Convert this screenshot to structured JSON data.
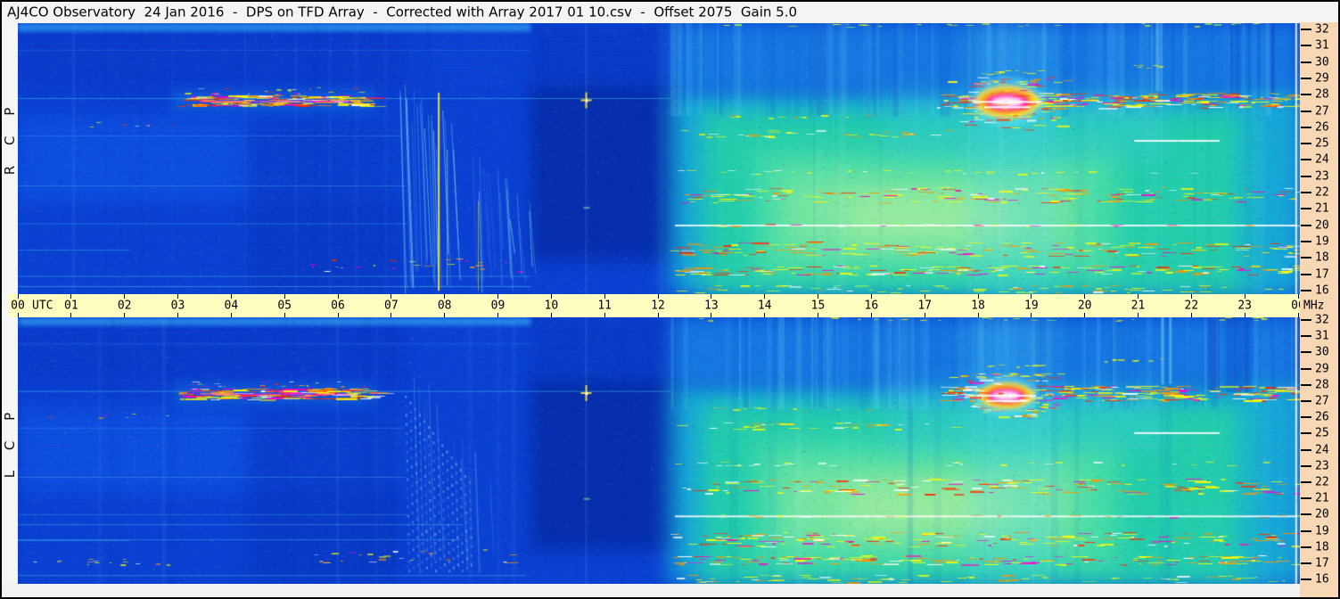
{
  "window": {
    "title": "AJ4CO Observatory  24 Jan 2016  -  DPS on TFD Array  -  Corrected with Array 2017 01 10.csv  -  Offset 2075  Gain 5.0"
  },
  "colors": {
    "title_bar_bg": "#f4f4f4",
    "time_axis_bg": "#ffffc2",
    "freq_axis_bg": "#f8d8b4",
    "margin_bg": "#f2f2f2",
    "border": "#000000",
    "axis_text": "#000000"
  },
  "chart_data": {
    "type": "heatmap",
    "title": "AJ4CO Observatory  24 Jan 2016  -  DPS on TFD Array  -  Corrected with Array 2017 01 10.csv  -  Offset 2075  Gain 5.0",
    "observatory": "AJ4CO Observatory",
    "date": "24 Jan 2016",
    "instrument": "DPS on TFD Array",
    "correction_file": "Array 2017 01 10.csv",
    "offset": 2075,
    "gain": 5.0,
    "x_axis": {
      "prefix_label": "UTC",
      "suffix_label": "MHz",
      "unit": "hours UTC",
      "range": [
        0,
        24
      ],
      "ticks": [
        "00",
        "01",
        "02",
        "03",
        "04",
        "05",
        "06",
        "07",
        "08",
        "09",
        "10",
        "11",
        "12",
        "13",
        "14",
        "15",
        "16",
        "17",
        "18",
        "19",
        "20",
        "21",
        "22",
        "23",
        "00"
      ]
    },
    "y_axis": {
      "unit": "MHz",
      "range": [
        16,
        32
      ],
      "ticks": [
        "32",
        "31",
        "30",
        "29",
        "28",
        "27",
        "26",
        "25",
        "24",
        "23",
        "22",
        "21",
        "20",
        "19",
        "18",
        "17",
        "16"
      ]
    },
    "panels": [
      {
        "id": "RCP",
        "label": "R C P",
        "polarization": "Right Circular Polarization"
      },
      {
        "id": "LCP",
        "label": "L C P",
        "polarization": "Left Circular Polarization"
      }
    ],
    "palette": {
      "streak_colors": [
        "#ffff00",
        "#ff9500",
        "#ff2a00",
        "#ff00c8",
        "#ffffff"
      ],
      "blob_layers": [
        [
          "#66e8ff",
          0.4,
          1.0,
          1.0
        ],
        [
          "#ffe14a",
          0.85,
          0.85,
          0.66
        ],
        [
          "#ff9a00",
          0.9,
          0.7,
          0.48
        ],
        [
          "#ff22cc",
          0.95,
          0.55,
          0.34
        ],
        [
          "#ffffff",
          0.95,
          0.4,
          0.2
        ]
      ]
    },
    "features": [
      {
        "type": "bg",
        "p": "B",
        "t": [
          0,
          24
        ],
        "f": [
          16,
          32
        ],
        "c": "#0a41d2",
        "a": 1,
        "blur": 0,
        "desc": "night-side blue background"
      },
      {
        "type": "bg",
        "p": "B",
        "t": [
          0,
          7.3
        ],
        "f": [
          28,
          32
        ],
        "c": "#0a38c8",
        "a": 0.8,
        "blur": 8
      },
      {
        "type": "bg",
        "p": "B",
        "t": [
          0,
          7.2
        ],
        "f": [
          21.5,
          26.5
        ],
        "c": "#1157e8",
        "a": 0.6,
        "blur": 10
      },
      {
        "type": "bg",
        "p": "B",
        "t": [
          4.3,
          7.15
        ],
        "f": [
          16,
          26.5
        ],
        "c": "#0736c0",
        "a": 0.6,
        "blur": 10
      },
      {
        "type": "bg",
        "p": "B",
        "t": [
          2.9,
          6.7
        ],
        "f": [
          26.8,
          28.1
        ],
        "c": "#1787e8",
        "a": 0.35,
        "blur": 6
      },
      {
        "type": "bg",
        "p": "B",
        "t": [
          9.6,
          12.4
        ],
        "f": [
          18,
          28.5
        ],
        "c": "#04259a",
        "a": 0.65,
        "blur": 9,
        "desc": "dark pre-noon region"
      },
      {
        "type": "bg",
        "p": "B",
        "t": [
          9.6,
          12.3
        ],
        "f": [
          28.5,
          32
        ],
        "c": "#0734bc",
        "a": 0.5,
        "blur": 9
      },
      {
        "type": "bg",
        "p": "B",
        "t": [
          12.2,
          24
        ],
        "f": [
          16,
          28
        ],
        "c": "#17b8d8",
        "a": 0.85,
        "blur": 12,
        "desc": "daytime ionospheric background"
      },
      {
        "type": "bg",
        "p": "B",
        "t": [
          12.8,
          23.2
        ],
        "f": [
          16,
          26.8
        ],
        "c": "#26d3a4",
        "a": 0.85,
        "blur": 12
      },
      {
        "type": "bg",
        "p": "B",
        "t": [
          13.8,
          20.6
        ],
        "f": [
          17,
          24.5
        ],
        "c": "#55e3a6",
        "a": 0.7,
        "blur": 14
      },
      {
        "type": "bg",
        "p": "B",
        "t": [
          14.3,
          19.8
        ],
        "f": [
          18.5,
          23
        ],
        "c": "#a8f09b",
        "a": 0.5,
        "blur": 16
      },
      {
        "type": "bg",
        "p": "B",
        "t": [
          15.5,
          18.6
        ],
        "f": [
          19,
          22
        ],
        "c": "#c9f59a",
        "a": 0.4,
        "blur": 16
      },
      {
        "type": "bg",
        "p": "B",
        "t": [
          12.2,
          24
        ],
        "f": [
          28,
          32
        ],
        "c": "#1b8fe8",
        "a": 0.7,
        "blur": 10
      },
      {
        "type": "bg",
        "p": "B",
        "t": [
          16.2,
          21.5
        ],
        "f": [
          24,
          28
        ],
        "c": "#3ecbe8",
        "a": 0.3,
        "blur": 12
      },
      {
        "type": "bg",
        "p": "B",
        "t": [
          17.8,
          19.45
        ],
        "f": [
          16,
          32
        ],
        "c": "#4fd7f2",
        "a": 0.25,
        "blur": 10,
        "desc": "bright evening column"
      },
      {
        "type": "bg",
        "p": "B",
        "t": [
          22.8,
          24
        ],
        "f": [
          16,
          28
        ],
        "c": "#18a8d8",
        "a": 0.55,
        "blur": 10
      },
      {
        "type": "bg",
        "p": "B",
        "t": [
          0,
          9.6
        ],
        "f": [
          31.5,
          32
        ],
        "c": "#2f9ff0",
        "a": 0.7,
        "blur": 2
      },
      {
        "type": "rows",
        "p": "B",
        "t": [
          0,
          12.2
        ],
        "f": [
          28,
          32
        ],
        "n": 14,
        "c": "#1a5ae0",
        "a": 0.25
      },
      {
        "type": "rows",
        "p": "B",
        "t": [
          0,
          7.2
        ],
        "f": [
          16,
          28
        ],
        "n": 20,
        "c": "#0a30b8",
        "a": 0.15
      },
      {
        "type": "rows",
        "p": "B",
        "t": [
          12.2,
          24
        ],
        "f": [
          16,
          28
        ],
        "n": 26,
        "c": "#ffffff",
        "a": 0.05
      },
      {
        "type": "vc",
        "p": "B",
        "t": [
          12.2,
          24
        ],
        "f": [
          26.5,
          32
        ],
        "n": 70,
        "light": "#7fe8ff",
        "dark": "#0c55c8",
        "amin": 0.05,
        "amax": 0.18,
        "wmax": 7,
        "lp": 0.55,
        "desc": "vertical striping, day side high band"
      },
      {
        "type": "vc",
        "p": "B",
        "t": [
          12.2,
          24
        ],
        "f": [
          16,
          32
        ],
        "n": 26,
        "light": "#bff4ff",
        "dark": "#0c55c8",
        "amin": 0.03,
        "amax": 0.08,
        "wmax": 9,
        "lp": 0.6
      },
      {
        "type": "vc",
        "p": "B",
        "t": [
          0,
          12.2
        ],
        "f": [
          16,
          32
        ],
        "n": 20,
        "light": "#6fb8f8",
        "dark": "#062a9e",
        "amin": 0.04,
        "amax": 0.1,
        "wmax": 6,
        "lp": 0.5
      },
      {
        "type": "vc",
        "p": "B",
        "t": [
          22.2,
          23.5
        ],
        "f": [
          27.5,
          32
        ],
        "n": 8,
        "light": "#7fe8ff",
        "dark": "#0b3cc0",
        "amin": 0.15,
        "amax": 0.3,
        "wmax": 10,
        "lp": 0.25
      },
      {
        "type": "vc",
        "p": "B",
        "t": [
          21.2,
          21.6
        ],
        "f": [
          28,
          32
        ],
        "n": 4,
        "light": "#8feaff",
        "dark": "#0c55c8",
        "amin": 0.2,
        "amax": 0.3,
        "wmax": 6,
        "lp": 0.8
      },
      {
        "type": "hl",
        "p": "B",
        "t": [
          0,
          12.2
        ],
        "f": 27.55,
        "c": "#49c4f2",
        "a": 0.5,
        "w": 1
      },
      {
        "type": "hl",
        "p": "B",
        "t": [
          0,
          7.2
        ],
        "f": 25.35,
        "c": "#3fb4ee",
        "a": 0.35,
        "w": 1
      },
      {
        "type": "hl",
        "p": "B",
        "t": [
          0,
          7.25
        ],
        "f": 22.4,
        "c": "#49c4f2",
        "a": 0.4,
        "w": 1
      },
      {
        "type": "hl",
        "p": "B",
        "t": [
          0,
          7.3
        ],
        "f": 20.15,
        "c": "#49c4f2",
        "a": 0.35,
        "w": 1
      },
      {
        "type": "hl",
        "p": "B",
        "t": [
          0,
          2.1
        ],
        "f": 18.6,
        "c": "#49c4f2",
        "a": 0.4,
        "w": 1
      },
      {
        "type": "hl",
        "p": "R",
        "t": [
          0,
          9.6
        ],
        "f": 17.05,
        "c": "#49c4f2",
        "a": 0.45,
        "w": 1
      },
      {
        "type": "hl",
        "p": "R",
        "t": [
          0,
          9.6
        ],
        "f": 16.45,
        "c": "#5fd4f6",
        "a": 0.45,
        "w": 1
      },
      {
        "type": "hl",
        "p": "B",
        "t": [
          0,
          9.6
        ],
        "f": 30.4,
        "c": "#2f9ff0",
        "a": 0.3,
        "w": 1
      },
      {
        "type": "hl",
        "p": "L",
        "t": [
          0,
          8.3
        ],
        "f": 19.55,
        "c": "#49c4f2",
        "a": 0.45,
        "w": 1
      },
      {
        "type": "hl",
        "p": "L",
        "t": [
          0,
          8.3
        ],
        "f": 18.65,
        "c": "#49c4f2",
        "a": 0.4,
        "w": 1
      },
      {
        "type": "hl",
        "p": "L",
        "t": [
          0,
          9.5
        ],
        "f": 16.5,
        "c": "#5fd4f6",
        "a": 0.4,
        "w": 1
      },
      {
        "type": "hs",
        "p": "B",
        "t": [
          3.0,
          6.65
        ],
        "f": [
          27.1,
          27.75
        ],
        "n": 170,
        "seg": [
          4,
          26
        ],
        "a": 0.95,
        "desc": "27 MHz interference band 03:00-06:40"
      },
      {
        "type": "hs",
        "p": "B",
        "t": [
          3.0,
          6.5
        ],
        "f": [
          27.8,
          28.2
        ],
        "n": 25,
        "seg": [
          2,
          8
        ],
        "a": 0.7
      },
      {
        "type": "hl",
        "p": "B",
        "t": [
          3.4,
          6.2
        ],
        "f": 27.38,
        "c": "#ff30d0",
        "a": 0.6,
        "w": 2
      },
      {
        "type": "hs",
        "p": "B",
        "t": [
          17.2,
          23.95
        ],
        "f": [
          27.0,
          27.9
        ],
        "n": 240,
        "seg": [
          3,
          22
        ],
        "a": 0.95,
        "desc": "27 MHz interference band, evening"
      },
      {
        "type": "hs",
        "p": "B",
        "t": [
          17.8,
          19.4
        ],
        "f": [
          26.3,
          26.9
        ],
        "n": 30,
        "seg": [
          3,
          12
        ],
        "a": 0.85
      },
      {
        "type": "hs",
        "p": "B",
        "t": [
          17.4,
          19.6
        ],
        "f": [
          28.4,
          28.65
        ],
        "n": 20,
        "seg": [
          3,
          14
        ],
        "cols": [
          "#ffff00",
          "#ff9500"
        ],
        "a": 0.9
      },
      {
        "type": "hs",
        "p": "B",
        "t": [
          18.0,
          19.2
        ],
        "f": [
          29.0,
          29.2
        ],
        "n": 10,
        "seg": [
          3,
          10
        ],
        "cols": [
          "#ffff00"
        ],
        "a": 0.85
      },
      {
        "type": "hl",
        "p": "B",
        "t": [
          20.9,
          22.5
        ],
        "f": 25.05,
        "c": "#ffffff",
        "a": 0.9,
        "w": 2,
        "desc": "25 MHz carrier"
      },
      {
        "type": "hs",
        "p": "B",
        "t": [
          12.3,
          17.6
        ],
        "f": [
          25.3,
          25.7
        ],
        "n": 34,
        "seg": [
          4,
          16
        ],
        "cols": [
          "#ffff00",
          "#ffffff",
          "#ff9500"
        ],
        "a": 0.85
      },
      {
        "type": "hs",
        "p": "B",
        "t": [
          12.3,
          23.9
        ],
        "f": [
          23.1,
          23.35
        ],
        "n": 30,
        "seg": [
          3,
          12
        ],
        "cols": [
          "#ffff00",
          "#ffffff"
        ],
        "a": 0.8
      },
      {
        "type": "hs",
        "p": "B",
        "t": [
          12.3,
          23.95
        ],
        "f": [
          21.4,
          22.3
        ],
        "n": 160,
        "seg": [
          3,
          20
        ],
        "a": 0.95,
        "desc": "21-22 MHz interference"
      },
      {
        "type": "hl",
        "p": "B",
        "t": [
          12.3,
          23.95
        ],
        "f": 20.05,
        "c": "#ffffff",
        "a": 0.85,
        "w": 2,
        "desc": "20 MHz carrier"
      },
      {
        "type": "hs",
        "p": "B",
        "t": [
          12.3,
          23.95
        ],
        "f": [
          20.0,
          20.15
        ],
        "n": 24,
        "seg": [
          4,
          14
        ],
        "a": 0.7
      },
      {
        "type": "hs",
        "p": "B",
        "t": [
          12.2,
          23.95
        ],
        "f": [
          18.25,
          19.1
        ],
        "n": 170,
        "seg": [
          3,
          20
        ],
        "a": 0.95,
        "desc": "18-19 MHz interference"
      },
      {
        "type": "hs",
        "p": "B",
        "t": [
          12.2,
          23.95
        ],
        "f": [
          17.15,
          17.7
        ],
        "n": 160,
        "seg": [
          3,
          20
        ],
        "a": 0.95,
        "desc": "17 MHz interference"
      },
      {
        "type": "hs",
        "p": "B",
        "t": [
          12.3,
          23.95
        ],
        "f": [
          16.1,
          16.55
        ],
        "n": 70,
        "seg": [
          3,
          16
        ],
        "cols": [
          "#ffff00",
          "#aaff44",
          "#ffffff",
          "#ff9500"
        ],
        "a": 0.85
      },
      {
        "type": "hs",
        "p": "B",
        "t": [
          5.3,
          9.6
        ],
        "f": [
          17.3,
          18.1
        ],
        "n": 26,
        "seg": [
          2,
          9
        ],
        "a": 0.8
      },
      {
        "type": "hs",
        "p": "L",
        "t": [
          0.2,
          3.4
        ],
        "f": [
          17.1,
          17.6
        ],
        "n": 16,
        "seg": [
          2,
          8
        ],
        "a": 0.8
      },
      {
        "type": "hs",
        "p": "B",
        "t": [
          12.5,
          23.5
        ],
        "f": [
          31.8,
          32.0
        ],
        "n": 26,
        "seg": [
          3,
          10
        ],
        "cols": [
          "#ffff00",
          "#aaff44"
        ],
        "a": 0.8
      },
      {
        "type": "hs",
        "p": "B",
        "t": [
          13.0,
          16.0
        ],
        "f": [
          26.4,
          26.6
        ],
        "n": 12,
        "seg": [
          3,
          10
        ],
        "cols": [
          "#ffff00",
          "#ff9500"
        ],
        "a": 0.8
      },
      {
        "type": "hs",
        "p": "B",
        "t": [
          20.3,
          21.4
        ],
        "f": [
          29.35,
          29.55
        ],
        "n": 8,
        "seg": [
          3,
          8
        ],
        "cols": [
          "#ffff00"
        ],
        "a": 0.8
      },
      {
        "type": "hs",
        "p": "B",
        "t": [
          0.3,
          3.2
        ],
        "f": [
          25.9,
          26.2
        ],
        "n": 7,
        "seg": [
          2,
          6
        ],
        "a": 0.7
      },
      {
        "type": "fan",
        "p": "R",
        "t": [
          7.15,
          9.7
        ],
        "n": 36,
        "c": "#7fd9f8",
        "desc": "Jupiter decametric emission drift streaks (RCP) 07:10-09:40"
      },
      {
        "type": "vl",
        "p": "R",
        "t": 7.88,
        "f": [
          16.2,
          27.9
        ],
        "c": "#ffe92a",
        "a": 0.9,
        "w": 2,
        "desc": "bright streak ~07:53"
      },
      {
        "type": "vl",
        "p": "R",
        "t": 8.04,
        "f": [
          16.5,
          24.5
        ],
        "c": "#bdf06a",
        "a": 0.55,
        "w": 1
      },
      {
        "type": "vl",
        "p": "R",
        "t": 8.62,
        "f": [
          16.2,
          21.5
        ],
        "c": "#ffe92a",
        "a": 0.5,
        "w": 1
      },
      {
        "type": "dots",
        "p": "L",
        "t": [
          7.25,
          8.5
        ],
        "n": 15,
        "c": "#9fdcf8",
        "desc": "Jupiter emission modulation lanes (LCP) 07:15-08:30"
      },
      {
        "type": "fan",
        "p": "L",
        "t": [
          7.4,
          9.3
        ],
        "n": 12,
        "c": "#6fc8f0",
        "faint": 1
      },
      {
        "type": "burst",
        "p": "B",
        "t": 10.64,
        "f": 27.45,
        "c": "#ffe92a",
        "desc": "point burst ~10:38 at 27.5 MHz"
      },
      {
        "type": "blob",
        "p": "R",
        "t": 18.52,
        "f": 27.35,
        "rt": 0.72,
        "rf": 1.5,
        "desc": "strong burst ~18:30 at 27-28 MHz"
      },
      {
        "type": "blob",
        "p": "L",
        "t": 18.5,
        "f": 27.3,
        "rt": 0.62,
        "rf": 1.25
      },
      {
        "type": "vl",
        "p": "B",
        "t": 23.93,
        "f": [
          16,
          32
        ],
        "c": "#ffffff",
        "a": 0.85,
        "w": 2,
        "desc": "right-edge marker line"
      },
      {
        "type": "noise",
        "p": "B",
        "n": 15000,
        "a": 0.1
      }
    ]
  }
}
